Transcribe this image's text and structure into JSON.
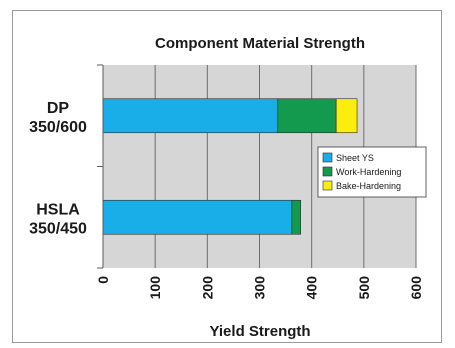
{
  "chart_data": {
    "type": "bar",
    "orientation": "horizontal",
    "stacked": true,
    "title": "Component Material Strength",
    "xlabel": "Yield Strength",
    "ylabel": "",
    "xlim": [
      0,
      600
    ],
    "xticks": [
      "0",
      "100",
      "200",
      "300",
      "400",
      "500",
      "600"
    ],
    "categories": [
      {
        "line1": "DP",
        "line2": "350/600"
      },
      {
        "line1": "HSLA",
        "line2": "350/450"
      }
    ],
    "series": [
      {
        "name": "Sheet YS",
        "color": "#19aee8",
        "values": [
          335,
          362
        ]
      },
      {
        "name": "Work-Hardening",
        "color": "#139a4e",
        "values": [
          112,
          17
        ]
      },
      {
        "name": "Bake-Hardening",
        "color": "#fbed0d",
        "values": [
          40,
          0
        ]
      }
    ],
    "grid": true,
    "plot_background": "#d6d6d6",
    "legend_position": "right"
  }
}
